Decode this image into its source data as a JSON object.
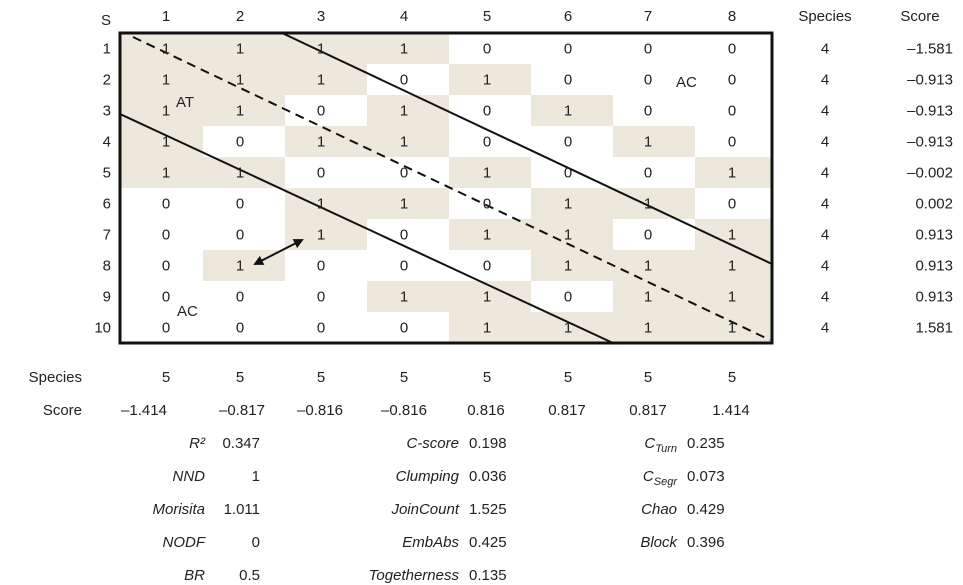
{
  "axis_label": "S",
  "species_label": "Species",
  "score_label": "Score",
  "columns": [
    "1",
    "2",
    "3",
    "4",
    "5",
    "6",
    "7",
    "8"
  ],
  "rows": [
    "1",
    "2",
    "3",
    "4",
    "5",
    "6",
    "7",
    "8",
    "9",
    "10"
  ],
  "matrix": [
    [
      "1",
      "1",
      "1",
      "1",
      "0",
      "0",
      "0",
      "0"
    ],
    [
      "1",
      "1",
      "1",
      "0",
      "1",
      "0",
      "0",
      "0"
    ],
    [
      "1",
      "1",
      "0",
      "1",
      "0",
      "1",
      "0",
      "0"
    ],
    [
      "1",
      "0",
      "1",
      "1",
      "0",
      "0",
      "1",
      "0"
    ],
    [
      "1",
      "1",
      "0",
      "0",
      "1",
      "0",
      "0",
      "1"
    ],
    [
      "0",
      "0",
      "1",
      "1",
      "0",
      "1",
      "1",
      "0"
    ],
    [
      "0",
      "0",
      "1",
      "0",
      "1",
      "1",
      "0",
      "1"
    ],
    [
      "0",
      "1",
      "0",
      "0",
      "0",
      "1",
      "1",
      "1"
    ],
    [
      "0",
      "0",
      "0",
      "1",
      "1",
      "0",
      "1",
      "1"
    ],
    [
      "0",
      "0",
      "0",
      "0",
      "1",
      "1",
      "1",
      "1"
    ]
  ],
  "shaded": [
    [
      1,
      1,
      1,
      1,
      0,
      0,
      0,
      0
    ],
    [
      1,
      1,
      1,
      0,
      1,
      0,
      0,
      0
    ],
    [
      1,
      1,
      0,
      1,
      0,
      1,
      0,
      0
    ],
    [
      1,
      0,
      1,
      1,
      0,
      0,
      1,
      0
    ],
    [
      1,
      1,
      0,
      0,
      1,
      0,
      0,
      1
    ],
    [
      0,
      0,
      1,
      1,
      0,
      1,
      1,
      0
    ],
    [
      0,
      0,
      1,
      0,
      1,
      1,
      0,
      1
    ],
    [
      0,
      1,
      0,
      0,
      0,
      1,
      1,
      1
    ],
    [
      0,
      0,
      0,
      1,
      1,
      0,
      1,
      1
    ],
    [
      0,
      0,
      0,
      0,
      1,
      1,
      1,
      1
    ]
  ],
  "row_species": [
    "4",
    "4",
    "4",
    "4",
    "4",
    "4",
    "4",
    "4",
    "4",
    "4"
  ],
  "row_scores": [
    "–1.581",
    "–0.913",
    "–0.913",
    "–0.913",
    "–0.002",
    "0.002",
    "0.913",
    "0.913",
    "0.913",
    "1.581"
  ],
  "col_species": [
    "5",
    "5",
    "5",
    "5",
    "5",
    "5",
    "5",
    "5"
  ],
  "col_scores": [
    "–1.414",
    "–0.817",
    "–0.816",
    "–0.816",
    "0.816",
    "0.817",
    "0.817",
    "1.414"
  ],
  "annotations": {
    "at": "AT",
    "ac_right": "AC",
    "ac_bottom": "AC"
  },
  "shade_color": "#ede8dc",
  "stats": [
    {
      "name": "R²",
      "value": "0.347"
    },
    {
      "name": "NND",
      "value": "1"
    },
    {
      "name": "Morisita",
      "value": "1.011"
    },
    {
      "name": "NODF",
      "value": "0"
    },
    {
      "name": "BR",
      "value": "0.5"
    },
    {
      "name": "C-score",
      "value": "0.198"
    },
    {
      "name": "Clumping",
      "value": "0.036"
    },
    {
      "name": "JoinCount",
      "value": "1.525"
    },
    {
      "name": "EmbAbs",
      "value": "0.425"
    },
    {
      "name": "Togetherness",
      "value": "0.135"
    },
    {
      "name": "C",
      "sub": "Turn",
      "value": "0.235"
    },
    {
      "name": "C",
      "sub": "Segr",
      "value": "0.073"
    },
    {
      "name": "Chao",
      "value": "0.429"
    },
    {
      "name": "Block",
      "value": "0.396"
    }
  ]
}
